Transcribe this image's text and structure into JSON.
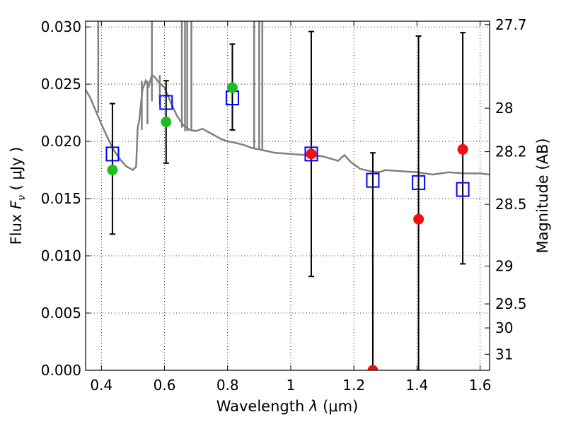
{
  "chart_data": {
    "type": "scatter",
    "title": "",
    "xlabel": {
      "prefix": "Wavelength",
      "symbol": "λ",
      "unit": "(μm)"
    },
    "ylabel": {
      "prefix": "Flux",
      "symbol": "F",
      "subscript": "ν",
      "unit": "( μJy )"
    },
    "y2label": "Magnitude (AB)",
    "xlim": [
      0.35,
      1.63
    ],
    "ylim": [
      0.0,
      0.0305
    ],
    "grid": true,
    "x_ticks": [
      0.4,
      0.6,
      0.8,
      1.0,
      1.2,
      1.4,
      1.6
    ],
    "x_tick_labels": [
      "0.4",
      "0.6",
      "0.8",
      "1",
      "1.2",
      "1.4",
      "1.6"
    ],
    "y_ticks": [
      0.0,
      0.005,
      0.01,
      0.015,
      0.02,
      0.025,
      0.03
    ],
    "y_tick_labels": [
      "0.000",
      "0.005",
      "0.010",
      "0.015",
      "0.020",
      "0.025",
      "0.030"
    ],
    "magnitude_ticks": [
      {
        "label": "27.7",
        "flux": 0.0302
      },
      {
        "label": "28",
        "flux": 0.0229
      },
      {
        "label": "28.2",
        "flux": 0.0191
      },
      {
        "label": "28.5",
        "flux": 0.0145
      },
      {
        "label": "29",
        "flux": 0.0091
      },
      {
        "label": "29.5",
        "flux": 0.0058
      },
      {
        "label": "30",
        "flux": 0.0037
      },
      {
        "label": "31",
        "flux": 0.0014
      }
    ],
    "colors": {
      "spectrum": "#808080",
      "model_squares": "#0000ff",
      "observed_optical": "#22bb22",
      "observed_nir": "#ee1111",
      "error_bars": "#000000"
    },
    "spectrum": {
      "x": [
        0.35,
        0.365,
        0.38,
        0.4,
        0.42,
        0.44,
        0.46,
        0.48,
        0.5,
        0.51,
        0.515,
        0.52,
        0.53,
        0.54,
        0.55,
        0.56,
        0.57,
        0.58,
        0.6,
        0.62,
        0.64,
        0.66,
        0.68,
        0.7,
        0.72,
        0.74,
        0.76,
        0.78,
        0.8,
        0.82,
        0.85,
        0.88,
        0.9,
        0.95,
        1.0,
        1.05,
        1.1,
        1.15,
        1.17,
        1.19,
        1.2,
        1.22,
        1.25,
        1.28,
        1.3,
        1.35,
        1.4,
        1.45,
        1.5,
        1.55,
        1.6,
        1.63
      ],
      "y": [
        0.0245,
        0.0238,
        0.0228,
        0.0215,
        0.0203,
        0.0192,
        0.0184,
        0.0178,
        0.0175,
        0.0178,
        0.0212,
        0.0218,
        0.0245,
        0.0253,
        0.0248,
        0.0258,
        0.0256,
        0.0252,
        0.0247,
        0.0234,
        0.0222,
        0.0214,
        0.021,
        0.0209,
        0.0211,
        0.0208,
        0.0205,
        0.0202,
        0.02,
        0.0199,
        0.0197,
        0.0194,
        0.0193,
        0.019,
        0.0189,
        0.0188,
        0.0187,
        0.0183,
        0.0188,
        0.0182,
        0.018,
        0.0176,
        0.0174,
        0.0173,
        0.0175,
        0.0174,
        0.0173,
        0.0171,
        0.0173,
        0.0172,
        0.0172,
        0.0171
      ]
    },
    "spectrum_spikes": [
      {
        "x": 0.39,
        "ymin": 0.0225,
        "ymax": 0.0305
      },
      {
        "x": 0.528,
        "ymin": 0.021,
        "ymax": 0.0253
      },
      {
        "x": 0.546,
        "ymin": 0.0215,
        "ymax": 0.0253
      },
      {
        "x": 0.56,
        "ymin": 0.0235,
        "ymax": 0.0305
      },
      {
        "x": 0.585,
        "ymin": 0.0232,
        "ymax": 0.0258
      },
      {
        "x": 0.655,
        "ymin": 0.0212,
        "ymax": 0.0305
      },
      {
        "x": 0.665,
        "ymin": 0.0209,
        "ymax": 0.0305
      },
      {
        "x": 0.672,
        "ymin": 0.0209,
        "ymax": 0.0305
      },
      {
        "x": 0.685,
        "ymin": 0.0209,
        "ymax": 0.0305
      },
      {
        "x": 0.884,
        "ymin": 0.0194,
        "ymax": 0.0305
      },
      {
        "x": 0.9,
        "ymin": 0.0193,
        "ymax": 0.0305
      },
      {
        "x": 0.91,
        "ymin": 0.0193,
        "ymax": 0.0305
      }
    ],
    "model_points": {
      "x": [
        0.435,
        0.605,
        0.815,
        1.065,
        1.26,
        1.405,
        1.545
      ],
      "y": [
        0.0189,
        0.0234,
        0.0238,
        0.0189,
        0.0166,
        0.0164,
        0.0158
      ]
    },
    "observed_points": [
      {
        "x": 0.435,
        "y": 0.0175,
        "err_low": 0.0119,
        "err_high": 0.0233,
        "band": "optical"
      },
      {
        "x": 0.605,
        "y": 0.0217,
        "err_low": 0.0181,
        "err_high": 0.0253,
        "band": "optical"
      },
      {
        "x": 0.815,
        "y": 0.0247,
        "err_low": 0.021,
        "err_high": 0.0285,
        "band": "optical"
      },
      {
        "x": 1.065,
        "y": 0.0189,
        "err_low": 0.0082,
        "err_high": 0.0296,
        "band": "nir"
      },
      {
        "x": 1.26,
        "y": 0.0,
        "err_low": 0.0,
        "err_high": 0.019,
        "band": "nir"
      },
      {
        "x": 1.405,
        "y": 0.0132,
        "err_low": 0.0,
        "err_high": 0.0292,
        "band": "nir"
      },
      {
        "x": 1.545,
        "y": 0.0193,
        "err_low": 0.0093,
        "err_high": 0.0295,
        "band": "nir"
      }
    ]
  }
}
